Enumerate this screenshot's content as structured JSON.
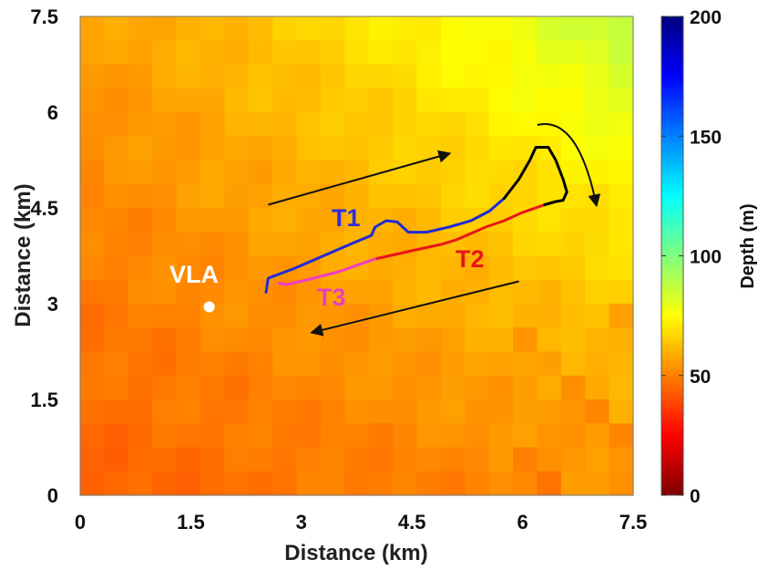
{
  "chart_data": {
    "type": "heatmap",
    "title": "",
    "xlabel": "Distance (km)",
    "ylabel": "Distance (km)",
    "xlim": [
      0,
      7.5
    ],
    "ylim": [
      0,
      7.5
    ],
    "xticks": [
      "0",
      "1.5",
      "3",
      "4.5",
      "6",
      "7.5"
    ],
    "yticks": [
      "0",
      "1.5",
      "3",
      "4.5",
      "6",
      "7.5"
    ],
    "grid": false,
    "colorbar": {
      "label": "Depth (m)",
      "range": [
        0,
        200
      ],
      "ticks": [
        "0",
        "50",
        "100",
        "150",
        "200"
      ],
      "colormap": "jet-reversed"
    },
    "depth_grid": {
      "rows": 20,
      "cols": 23,
      "description_values": "Depth increases from about 45 m in the lower-left to about 85 m in the upper-right"
    },
    "annotations": {
      "vla_label": "VLA",
      "vla_point": [
        1.75,
        2.95
      ],
      "track_labels": {
        "t1": "T1",
        "t2": "T2",
        "t3": "T3"
      }
    },
    "series": [
      {
        "name": "T1",
        "color": "#1f2bd6",
        "x": [
          2.52,
          2.55,
          2.9,
          3.3,
          3.7,
          3.95,
          4.0,
          4.15,
          4.3,
          4.45,
          4.7,
          5.0,
          5.3,
          5.55,
          5.75
        ],
        "y": [
          3.18,
          3.4,
          3.55,
          3.75,
          3.95,
          4.07,
          4.2,
          4.3,
          4.28,
          4.12,
          4.12,
          4.2,
          4.3,
          4.45,
          4.65
        ]
      },
      {
        "name": "T2",
        "color": "#e8151b",
        "x": [
          4.0,
          4.5,
          4.9,
          5.1,
          5.5,
          5.75,
          6.0,
          6.3
        ],
        "y": [
          3.7,
          3.83,
          3.93,
          4.0,
          4.2,
          4.3,
          4.43,
          4.55
        ]
      },
      {
        "name": "T3",
        "color": "#f03cc8",
        "x": [
          2.7,
          2.8,
          3.1,
          3.5,
          3.8,
          4.0
        ],
        "y": [
          3.32,
          3.3,
          3.38,
          3.5,
          3.62,
          3.7
        ]
      },
      {
        "name": "",
        "color": "#000000",
        "x": [
          5.75,
          5.95,
          6.1,
          6.18,
          6.35,
          6.45,
          6.55,
          6.6,
          6.55,
          6.45,
          6.3
        ],
        "y": [
          4.65,
          4.95,
          5.25,
          5.45,
          5.45,
          5.25,
          4.95,
          4.75,
          4.62,
          4.6,
          4.55
        ]
      }
    ],
    "arrows": [
      {
        "from": [
          2.55,
          4.55
        ],
        "to": [
          5.0,
          5.35
        ],
        "color": "#111111"
      },
      {
        "from": [
          5.95,
          3.35
        ],
        "to": [
          3.15,
          2.55
        ],
        "color": "#111111"
      },
      {
        "from": [
          6.2,
          5.8
        ],
        "curve_via": [
          6.75,
          5.95
        ],
        "to": [
          7.0,
          4.55
        ],
        "color": "#111111"
      }
    ]
  }
}
